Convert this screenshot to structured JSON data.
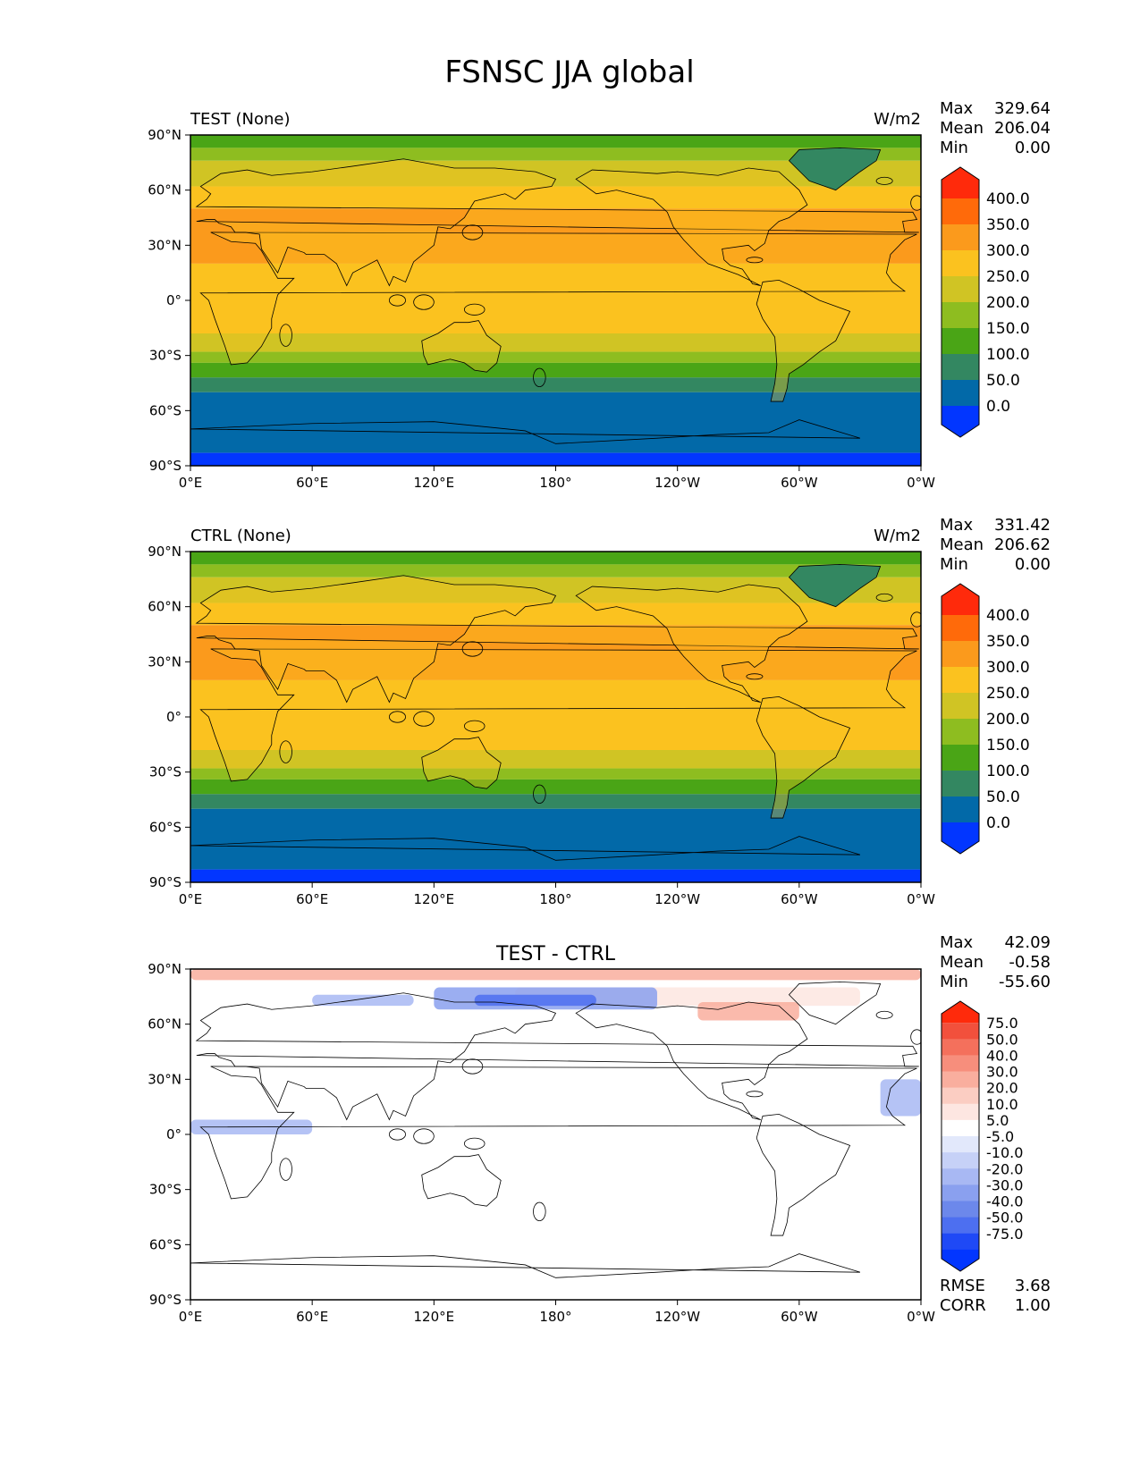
{
  "figure": {
    "title": "FSNSC JJA global"
  },
  "axis_ticks": {
    "lat": [
      "90°N",
      "60°N",
      "30°N",
      "0°",
      "30°S",
      "60°S",
      "90°S"
    ],
    "lon": [
      "0°E",
      "60°E",
      "120°E",
      "180°",
      "120°W",
      "60°W",
      "0°W"
    ]
  },
  "panels": [
    {
      "left_title": "TEST (None)",
      "center_title": "",
      "units": "W/m2",
      "stats": [
        {
          "label": "Max",
          "value": "329.64"
        },
        {
          "label": "Mean",
          "value": "206.04"
        },
        {
          "label": "Min",
          "value": "0.00"
        }
      ],
      "extra_stats": [],
      "colorbar": {
        "labels": [
          "400.0",
          "350.0",
          "300.0",
          "250.0",
          "200.0",
          "150.0",
          "100.0",
          "50.0",
          "0.0"
        ],
        "colors": [
          "#ff2a0b",
          "#ff6a0a",
          "#fb9a1c",
          "#fbc21f",
          "#d0c424",
          "#8ebd20",
          "#4aa516",
          "#338761",
          "#0269a8",
          "#0236ff"
        ]
      }
    },
    {
      "left_title": "CTRL (None)",
      "center_title": "",
      "units": "W/m2",
      "stats": [
        {
          "label": "Max",
          "value": "331.42"
        },
        {
          "label": "Mean",
          "value": "206.62"
        },
        {
          "label": "Min",
          "value": "0.00"
        }
      ],
      "extra_stats": [],
      "colorbar": {
        "labels": [
          "400.0",
          "350.0",
          "300.0",
          "250.0",
          "200.0",
          "150.0",
          "100.0",
          "50.0",
          "0.0"
        ],
        "colors": [
          "#ff2a0b",
          "#ff6a0a",
          "#fb9a1c",
          "#fbc21f",
          "#d0c424",
          "#8ebd20",
          "#4aa516",
          "#338761",
          "#0269a8",
          "#0236ff"
        ]
      }
    },
    {
      "left_title": "",
      "center_title": "TEST - CTRL",
      "units": "",
      "stats": [
        {
          "label": "Max",
          "value": "42.09"
        },
        {
          "label": "Mean",
          "value": "-0.58"
        },
        {
          "label": "Min",
          "value": "-55.60"
        }
      ],
      "extra_stats": [
        {
          "label": "RMSE",
          "value": "3.68"
        },
        {
          "label": "CORR",
          "value": "1.00"
        }
      ],
      "colorbar": {
        "labels": [
          "75.0",
          "50.0",
          "40.0",
          "30.0",
          "20.0",
          "10.0",
          "5.0",
          "-5.0",
          "-10.0",
          "-20.0",
          "-30.0",
          "-40.0",
          "-50.0",
          "-75.0"
        ],
        "colors": [
          "#ff2a0b",
          "#f2503c",
          "#f4705c",
          "#f78e7c",
          "#f9ae9e",
          "#fbcdc2",
          "#fde6e1",
          "#ffffff",
          "#e2e8fb",
          "#c6d1f7",
          "#a8b8f3",
          "#8aa0ef",
          "#6c88eb",
          "#4d6ff0",
          "#1f49f6",
          "#0236ff"
        ]
      }
    }
  ],
  "map_colors": {
    "ocean_bands": [
      "#0236ff",
      "#0269a8",
      "#338761",
      "#4aa516",
      "#8ebd20",
      "#d0c424",
      "#fbc21f",
      "#fb9a1c"
    ],
    "land_tint": "#fbc21f",
    "coast": "#000000"
  }
}
